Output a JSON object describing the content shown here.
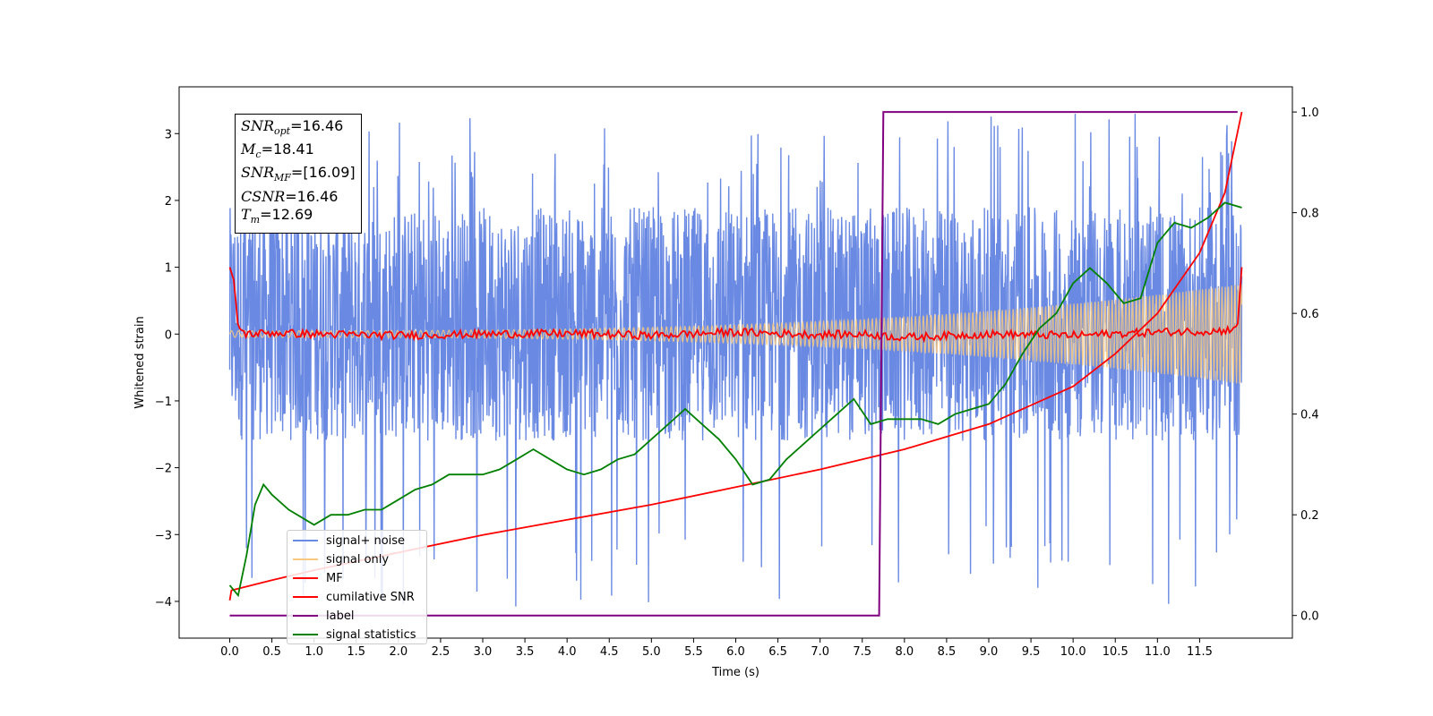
{
  "chart_data": {
    "type": "line",
    "xlabel": "Time (s)",
    "ylabel": "Whitened strain",
    "xlim": [
      -0.6,
      12.6
    ],
    "ylim": [
      -4.55,
      3.7
    ],
    "y2lim": [
      -0.045,
      1.05
    ],
    "x_ticks": [
      0.0,
      0.5,
      1.0,
      1.5,
      2.0,
      2.5,
      3.0,
      3.5,
      4.0,
      4.5,
      5.0,
      5.5,
      6.0,
      6.5,
      7.0,
      7.5,
      8.0,
      8.5,
      9.0,
      9.5,
      10.0,
      10.5,
      11.0,
      11.5
    ],
    "x_tick_labels": [
      "0.0",
      "0.5",
      "1.0",
      "1.5",
      "2.0",
      "2.5",
      "3.0",
      "3.5",
      "4.0",
      "4.5",
      "5.0",
      "5.5",
      "6.0",
      "6.5",
      "7.0",
      "7.5",
      "8.0",
      "8.5",
      "9.0",
      "9.5",
      "10.0",
      "10.5",
      "11.0",
      "11.5"
    ],
    "y_ticks": [
      3,
      2,
      1,
      0,
      -1,
      -2,
      -3,
      -4
    ],
    "y_tick_labels": [
      "3",
      "2",
      "1",
      "0",
      "−1",
      "−2",
      "−3",
      "−4"
    ],
    "y2_ticks": [
      1.0,
      0.8,
      0.6,
      0.4,
      0.2,
      0.0
    ],
    "y2_tick_labels": [
      "1.0",
      "0.8",
      "0.6",
      "0.4",
      "0.2",
      "0.0"
    ],
    "annotation": {
      "snr_opt": "=16.46",
      "mc": "=18.41",
      "snr_mf": "=[16.09]",
      "csnr": "=16.46",
      "tm": "=12.69"
    },
    "series": [
      {
        "name": "signal+ noise",
        "color": "#6a89e2",
        "axis": "left",
        "kind": "noise",
        "x_range": [
          0.0,
          12.0
        ],
        "envelope": {
          "typical_low": -1.6,
          "typical_high": 1.9,
          "min": -4.1,
          "max": 3.3
        }
      },
      {
        "name": "signal only",
        "color": "#f7c980",
        "axis": "left",
        "kind": "chirp",
        "x_range": [
          0.0,
          12.0
        ],
        "amplitude": {
          "start": 0.05,
          "end": 0.75
        }
      },
      {
        "name": "MF",
        "color": "#ff0000",
        "axis": "left",
        "x": [
          0.0,
          0.05,
          0.1,
          0.2,
          0.5,
          1.0,
          2.0,
          3.0,
          4.0,
          5.0,
          6.0,
          7.0,
          7.5,
          8.0,
          9.0,
          10.0,
          11.0,
          11.8,
          11.95,
          12.0
        ],
        "values": [
          1.0,
          0.8,
          0.1,
          0.0,
          0.02,
          0.0,
          -0.02,
          0.0,
          0.01,
          -0.02,
          0.03,
          -0.01,
          0.0,
          -0.05,
          0.0,
          -0.02,
          0.03,
          0.05,
          0.12,
          1.0
        ]
      },
      {
        "name": "cumilative SNR",
        "color": "#ff0000",
        "axis": "right",
        "x": [
          0.0,
          0.02,
          0.5,
          1.0,
          2.0,
          3.0,
          4.0,
          5.0,
          6.0,
          7.0,
          8.0,
          9.0,
          10.0,
          10.5,
          11.0,
          11.5,
          11.8,
          12.0
        ],
        "values": [
          0.03,
          0.05,
          0.07,
          0.09,
          0.125,
          0.16,
          0.19,
          0.22,
          0.255,
          0.29,
          0.33,
          0.38,
          0.455,
          0.52,
          0.6,
          0.72,
          0.84,
          1.0
        ]
      },
      {
        "name": "label",
        "color": "#800080",
        "axis": "right",
        "x": [
          0.0,
          7.7,
          7.75,
          11.95
        ],
        "values": [
          0.0,
          0.0,
          1.0,
          1.0
        ]
      },
      {
        "name": "signal statistics",
        "color": "#008000",
        "axis": "right",
        "x": [
          0.0,
          0.1,
          0.2,
          0.3,
          0.4,
          0.5,
          0.7,
          0.9,
          1.0,
          1.2,
          1.4,
          1.6,
          1.8,
          2.0,
          2.2,
          2.4,
          2.6,
          2.8,
          3.0,
          3.2,
          3.4,
          3.6,
          3.8,
          4.0,
          4.2,
          4.4,
          4.6,
          4.8,
          5.0,
          5.2,
          5.4,
          5.6,
          5.8,
          6.0,
          6.2,
          6.4,
          6.6,
          6.8,
          7.0,
          7.2,
          7.4,
          7.6,
          7.8,
          8.0,
          8.2,
          8.4,
          8.6,
          8.8,
          9.0,
          9.2,
          9.4,
          9.6,
          9.8,
          10.0,
          10.2,
          10.4,
          10.6,
          10.8,
          11.0,
          11.2,
          11.4,
          11.6,
          11.8,
          12.0
        ],
        "values": [
          0.06,
          0.04,
          0.12,
          0.22,
          0.26,
          0.24,
          0.21,
          0.19,
          0.18,
          0.2,
          0.2,
          0.21,
          0.21,
          0.23,
          0.25,
          0.26,
          0.28,
          0.28,
          0.28,
          0.29,
          0.31,
          0.33,
          0.31,
          0.29,
          0.28,
          0.29,
          0.31,
          0.32,
          0.35,
          0.38,
          0.41,
          0.38,
          0.35,
          0.31,
          0.26,
          0.27,
          0.31,
          0.34,
          0.37,
          0.4,
          0.43,
          0.38,
          0.39,
          0.39,
          0.39,
          0.38,
          0.4,
          0.41,
          0.42,
          0.46,
          0.52,
          0.57,
          0.6,
          0.66,
          0.69,
          0.66,
          0.62,
          0.63,
          0.74,
          0.78,
          0.77,
          0.79,
          0.82,
          0.81
        ]
      }
    ]
  }
}
